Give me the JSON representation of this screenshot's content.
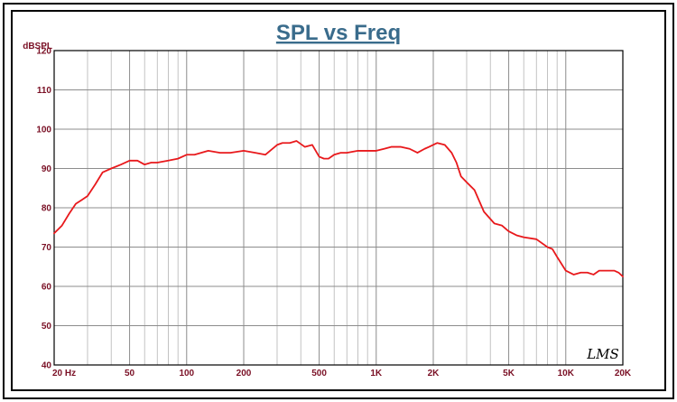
{
  "chart_data": {
    "type": "line",
    "title": "SPL vs Freq",
    "ylabel": "dBSPL",
    "xlabel": "",
    "xscale": "log",
    "xlim": [
      20,
      20000
    ],
    "ylim": [
      40,
      120
    ],
    "grid": true,
    "legend": "none",
    "logo": "LMS",
    "yticks": [
      {
        "value": 40,
        "label": "40"
      },
      {
        "value": 50,
        "label": "50"
      },
      {
        "value": 60,
        "label": "60"
      },
      {
        "value": 70,
        "label": "70"
      },
      {
        "value": 80,
        "label": "80"
      },
      {
        "value": 90,
        "label": "90"
      },
      {
        "value": 100,
        "label": "100"
      },
      {
        "value": 110,
        "label": "110"
      },
      {
        "value": 120,
        "label": "120"
      }
    ],
    "xticks": [
      {
        "value": 20,
        "label": "20  Hz"
      },
      {
        "value": 50,
        "label": "50"
      },
      {
        "value": 100,
        "label": "100"
      },
      {
        "value": 200,
        "label": "200"
      },
      {
        "value": 500,
        "label": "500"
      },
      {
        "value": 1000,
        "label": "1K"
      },
      {
        "value": 2000,
        "label": "2K"
      },
      {
        "value": 5000,
        "label": "5K"
      },
      {
        "value": 10000,
        "label": "10K"
      },
      {
        "value": 20000,
        "label": "20K"
      }
    ],
    "colors": {
      "background": "#ffffff",
      "border": "#000000",
      "title": "#3a6c8c",
      "tick_labels": "#7a1025",
      "grid_major": "#8c8c8c",
      "grid_minor": "#b4b4b4",
      "series": "#e8191c"
    },
    "series": [
      {
        "x": [
          20,
          22,
          24,
          26,
          28,
          30,
          33,
          36,
          40,
          45,
          50,
          55,
          60,
          65,
          70,
          80,
          90,
          100,
          110,
          130,
          150,
          170,
          200,
          230,
          260,
          300,
          320,
          350,
          380,
          420,
          460,
          500,
          530,
          560,
          600,
          650,
          700,
          800,
          900,
          1000,
          1100,
          1200,
          1350,
          1500,
          1650,
          1800,
          1900,
          2100,
          2300,
          2500,
          2650,
          2800,
          3000,
          3300,
          3700,
          4200,
          4600,
          5000,
          5500,
          6000,
          7000,
          8000,
          8500,
          9000,
          10000,
          11000,
          12000,
          13000,
          14000,
          15000,
          16000,
          17000,
          18000,
          19000,
          20000
        ],
        "values": [
          73.5,
          75.5,
          78.5,
          81,
          82,
          83,
          86,
          89,
          90,
          91,
          92,
          92,
          91,
          91.5,
          91.5,
          92,
          92.5,
          93.5,
          93.5,
          94.5,
          94,
          94,
          94.5,
          94,
          93.5,
          96,
          96.5,
          96.5,
          97,
          95.5,
          96,
          93,
          92.5,
          92.5,
          93.5,
          94,
          94,
          94.5,
          94.5,
          94.5,
          95,
          95.5,
          95.5,
          95,
          94,
          95,
          95.5,
          96.5,
          96,
          94,
          91.5,
          88,
          86.5,
          84.5,
          79,
          76,
          75.5,
          74,
          73,
          72.5,
          72,
          70,
          69.5,
          67.5,
          64,
          63,
          63.5,
          63.5,
          63,
          64,
          64,
          64,
          64,
          63.5,
          62.5
        ]
      }
    ]
  }
}
